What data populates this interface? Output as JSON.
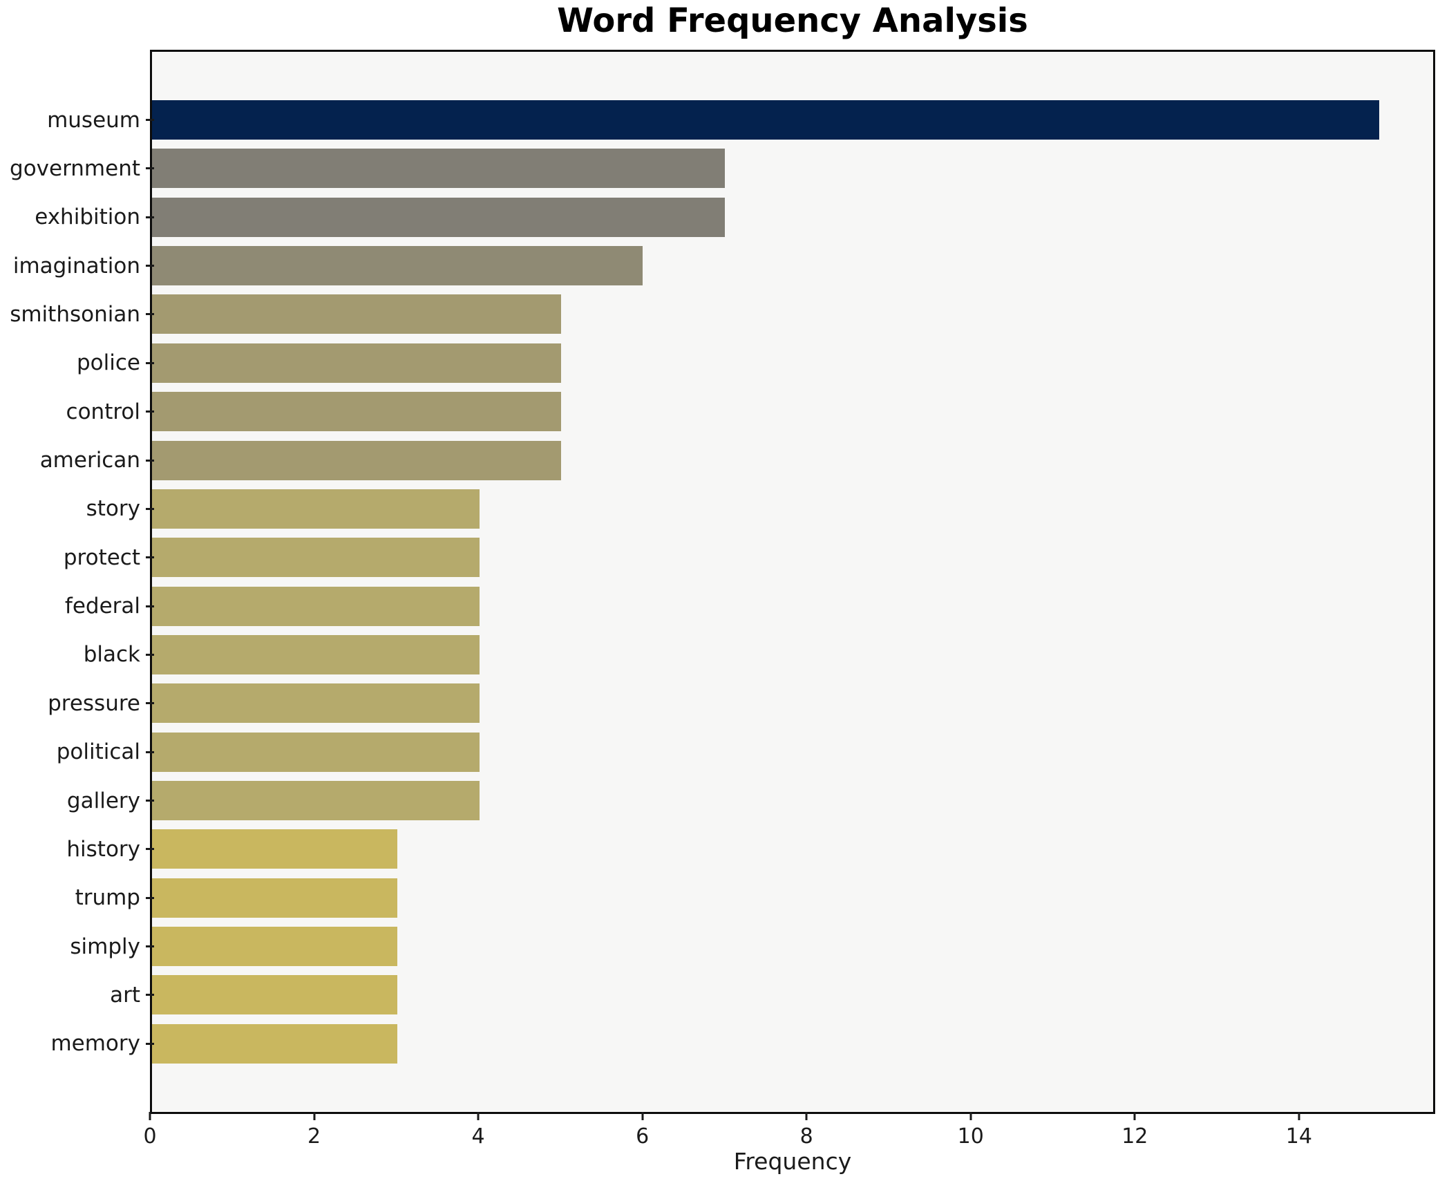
{
  "title": "Word Frequency Analysis",
  "chart_data": {
    "type": "bar",
    "orientation": "horizontal",
    "title": "Word Frequency Analysis",
    "xlabel": "Frequency",
    "ylabel": "",
    "categories": [
      "museum",
      "government",
      "exhibition",
      "imagination",
      "smithsonian",
      "police",
      "control",
      "american",
      "story",
      "protect",
      "federal",
      "black",
      "pressure",
      "political",
      "gallery",
      "history",
      "trump",
      "simply",
      "art",
      "memory"
    ],
    "values": [
      15,
      7,
      7,
      6,
      5,
      5,
      5,
      5,
      4,
      4,
      4,
      4,
      4,
      4,
      4,
      3,
      3,
      3,
      3,
      3
    ],
    "bar_colors": [
      "#04224e",
      "#817e75",
      "#817e75",
      "#8f8a74",
      "#a39a70",
      "#a39a70",
      "#a39a70",
      "#a39a70",
      "#b5aa6c",
      "#b5aa6c",
      "#b5aa6c",
      "#b5aa6c",
      "#b5aa6c",
      "#b5aa6c",
      "#b5aa6c",
      "#c9b75f",
      "#c9b75f",
      "#c9b75f",
      "#c9b75f",
      "#c9b75f"
    ],
    "xlim": [
      0,
      15.66
    ],
    "xticks": [
      0,
      2,
      4,
      6,
      8,
      10,
      12,
      14
    ],
    "grid": false,
    "legend": null,
    "plot_background": "#f7f7f6",
    "figure_background": "#ffffff",
    "accent_color": "#04224e"
  }
}
